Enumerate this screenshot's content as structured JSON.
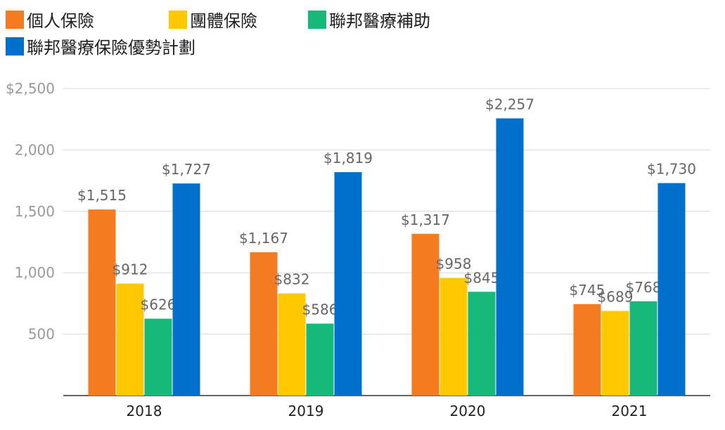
{
  "chart_data": {
    "type": "bar",
    "title": "",
    "xlabel": "",
    "ylabel": "",
    "categories": [
      "2018",
      "2019",
      "2020",
      "2021"
    ],
    "series": [
      {
        "name": "個人保險",
        "color": "#F47B20",
        "values": [
          1515,
          1167,
          1317,
          745
        ],
        "labels": [
          "$1,515",
          "$1,167",
          "$1,317",
          "$745"
        ]
      },
      {
        "name": "團體保險",
        "color": "#FFC800",
        "values": [
          912,
          832,
          958,
          689
        ],
        "labels": [
          "$912",
          "$832",
          "$958",
          "$689"
        ]
      },
      {
        "name": "聯邦醫療補助",
        "color": "#16B97A",
        "values": [
          626,
          586,
          845,
          768
        ],
        "labels": [
          "$626",
          "$586",
          "$845",
          "$768"
        ]
      },
      {
        "name": "聯邦醫療保險優勢計劃",
        "color": "#0070CC",
        "values": [
          1727,
          1819,
          2257,
          1730
        ],
        "labels": [
          "$1,727",
          "$1,819",
          "$2,257",
          "$1,730"
        ]
      }
    ],
    "ylim": [
      0,
      2500
    ],
    "yticks": [
      {
        "value": 500,
        "label": "500"
      },
      {
        "value": 1000,
        "label": "1,000"
      },
      {
        "value": 1500,
        "label": "1,500"
      },
      {
        "value": 2000,
        "label": "2,000"
      },
      {
        "value": 2500,
        "label": "$2,500"
      }
    ],
    "grid": true,
    "legend_position": "top-left"
  }
}
